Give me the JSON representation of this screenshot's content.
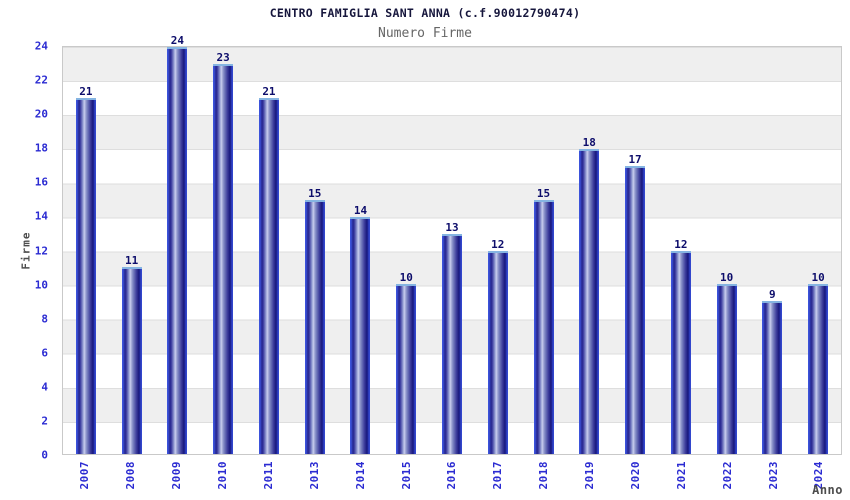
{
  "chart_data": {
    "type": "bar",
    "title": "CENTRO FAMIGLIA SANT ANNA (c.f.90012790474)",
    "subtitle": "Numero Firme",
    "xlabel": "Anno",
    "ylabel": "Firme",
    "categories": [
      "2007",
      "2008",
      "2009",
      "2010",
      "2011",
      "2013",
      "2014",
      "2015",
      "2016",
      "2017",
      "2018",
      "2019",
      "2020",
      "2021",
      "2022",
      "2023",
      "2024"
    ],
    "values": [
      21,
      11,
      24,
      23,
      21,
      15,
      14,
      10,
      13,
      12,
      15,
      18,
      17,
      12,
      10,
      9,
      10
    ],
    "ylim": [
      0,
      24
    ],
    "ytick_step": 2,
    "grid": "horizontal gridlines every 2 units with alternating gray/white bands",
    "legend": "none",
    "colors": {
      "bar_dark": "#1b1b80",
      "bar_highlight": "#c9cdee",
      "bar_edge": "#3246cc",
      "bar_top_edge": "#85b4e2",
      "tick_label": "#2b2bd2",
      "value_label": "#0d0d6b",
      "axis_title": "#4d4d4d",
      "title": "#16163c",
      "subtitle": "#666666",
      "band_gray": "#efefef",
      "band_white": "#ffffff",
      "plot_border": "#c9c9c9"
    }
  }
}
